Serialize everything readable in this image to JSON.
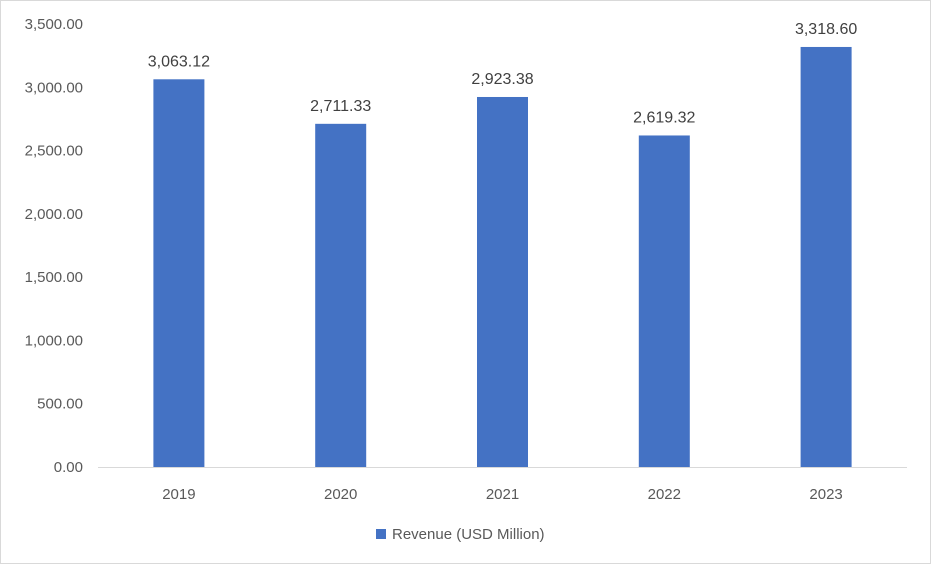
{
  "chart_data": {
    "type": "bar",
    "categories": [
      "2019",
      "2020",
      "2021",
      "2022",
      "2023"
    ],
    "series": [
      {
        "name": "Revenue (USD Million)",
        "values": [
          3063.12,
          2711.33,
          2923.38,
          2619.32,
          3318.6
        ],
        "value_labels": [
          "3,063.12",
          "2,711.33",
          "2,923.38",
          "2,619.32",
          "3,318.60"
        ],
        "color": "#4472C4"
      }
    ],
    "ylim": [
      0,
      3500
    ],
    "yticks": [
      0,
      500,
      1000,
      1500,
      2000,
      2500,
      3000,
      3500
    ],
    "ytick_labels": [
      "0.00",
      "500.00",
      "1,000.00",
      "1,500.00",
      "2,000.00",
      "2,500.00",
      "3,000.00",
      "3,500.00"
    ],
    "title": "",
    "xlabel": "",
    "ylabel": "",
    "grid": false,
    "legend_position": "bottom"
  }
}
